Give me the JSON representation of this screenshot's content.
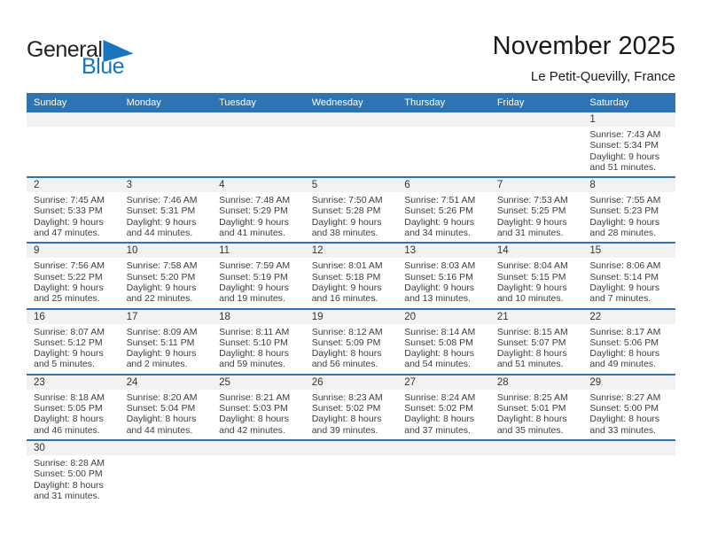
{
  "logo": {
    "part1": "General",
    "part2": "Blue"
  },
  "header": {
    "title": "November 2025",
    "subtitle": "Le Petit-Quevilly, France"
  },
  "weekdays": [
    "Sunday",
    "Monday",
    "Tuesday",
    "Wednesday",
    "Thursday",
    "Friday",
    "Saturday"
  ],
  "colors": {
    "header_bar": "#2e74b5",
    "week_divider": "#2e74b5",
    "day_number_strip": "#f2f2f2",
    "logo_blue": "#1b75bc",
    "text": "#3d3d3d"
  },
  "weeks": [
    [
      null,
      null,
      null,
      null,
      null,
      null,
      {
        "day": "1",
        "lines": [
          "Sunrise: 7:43 AM",
          "Sunset: 5:34 PM",
          "Daylight: 9 hours",
          "and 51 minutes."
        ]
      }
    ],
    [
      {
        "day": "2",
        "lines": [
          "Sunrise: 7:45 AM",
          "Sunset: 5:33 PM",
          "Daylight: 9 hours",
          "and 47 minutes."
        ]
      },
      {
        "day": "3",
        "lines": [
          "Sunrise: 7:46 AM",
          "Sunset: 5:31 PM",
          "Daylight: 9 hours",
          "and 44 minutes."
        ]
      },
      {
        "day": "4",
        "lines": [
          "Sunrise: 7:48 AM",
          "Sunset: 5:29 PM",
          "Daylight: 9 hours",
          "and 41 minutes."
        ]
      },
      {
        "day": "5",
        "lines": [
          "Sunrise: 7:50 AM",
          "Sunset: 5:28 PM",
          "Daylight: 9 hours",
          "and 38 minutes."
        ]
      },
      {
        "day": "6",
        "lines": [
          "Sunrise: 7:51 AM",
          "Sunset: 5:26 PM",
          "Daylight: 9 hours",
          "and 34 minutes."
        ]
      },
      {
        "day": "7",
        "lines": [
          "Sunrise: 7:53 AM",
          "Sunset: 5:25 PM",
          "Daylight: 9 hours",
          "and 31 minutes."
        ]
      },
      {
        "day": "8",
        "lines": [
          "Sunrise: 7:55 AM",
          "Sunset: 5:23 PM",
          "Daylight: 9 hours",
          "and 28 minutes."
        ]
      }
    ],
    [
      {
        "day": "9",
        "lines": [
          "Sunrise: 7:56 AM",
          "Sunset: 5:22 PM",
          "Daylight: 9 hours",
          "and 25 minutes."
        ]
      },
      {
        "day": "10",
        "lines": [
          "Sunrise: 7:58 AM",
          "Sunset: 5:20 PM",
          "Daylight: 9 hours",
          "and 22 minutes."
        ]
      },
      {
        "day": "11",
        "lines": [
          "Sunrise: 7:59 AM",
          "Sunset: 5:19 PM",
          "Daylight: 9 hours",
          "and 19 minutes."
        ]
      },
      {
        "day": "12",
        "lines": [
          "Sunrise: 8:01 AM",
          "Sunset: 5:18 PM",
          "Daylight: 9 hours",
          "and 16 minutes."
        ]
      },
      {
        "day": "13",
        "lines": [
          "Sunrise: 8:03 AM",
          "Sunset: 5:16 PM",
          "Daylight: 9 hours",
          "and 13 minutes."
        ]
      },
      {
        "day": "14",
        "lines": [
          "Sunrise: 8:04 AM",
          "Sunset: 5:15 PM",
          "Daylight: 9 hours",
          "and 10 minutes."
        ]
      },
      {
        "day": "15",
        "lines": [
          "Sunrise: 8:06 AM",
          "Sunset: 5:14 PM",
          "Daylight: 9 hours",
          "and 7 minutes."
        ]
      }
    ],
    [
      {
        "day": "16",
        "lines": [
          "Sunrise: 8:07 AM",
          "Sunset: 5:12 PM",
          "Daylight: 9 hours",
          "and 5 minutes."
        ]
      },
      {
        "day": "17",
        "lines": [
          "Sunrise: 8:09 AM",
          "Sunset: 5:11 PM",
          "Daylight: 9 hours",
          "and 2 minutes."
        ]
      },
      {
        "day": "18",
        "lines": [
          "Sunrise: 8:11 AM",
          "Sunset: 5:10 PM",
          "Daylight: 8 hours",
          "and 59 minutes."
        ]
      },
      {
        "day": "19",
        "lines": [
          "Sunrise: 8:12 AM",
          "Sunset: 5:09 PM",
          "Daylight: 8 hours",
          "and 56 minutes."
        ]
      },
      {
        "day": "20",
        "lines": [
          "Sunrise: 8:14 AM",
          "Sunset: 5:08 PM",
          "Daylight: 8 hours",
          "and 54 minutes."
        ]
      },
      {
        "day": "21",
        "lines": [
          "Sunrise: 8:15 AM",
          "Sunset: 5:07 PM",
          "Daylight: 8 hours",
          "and 51 minutes."
        ]
      },
      {
        "day": "22",
        "lines": [
          "Sunrise: 8:17 AM",
          "Sunset: 5:06 PM",
          "Daylight: 8 hours",
          "and 49 minutes."
        ]
      }
    ],
    [
      {
        "day": "23",
        "lines": [
          "Sunrise: 8:18 AM",
          "Sunset: 5:05 PM",
          "Daylight: 8 hours",
          "and 46 minutes."
        ]
      },
      {
        "day": "24",
        "lines": [
          "Sunrise: 8:20 AM",
          "Sunset: 5:04 PM",
          "Daylight: 8 hours",
          "and 44 minutes."
        ]
      },
      {
        "day": "25",
        "lines": [
          "Sunrise: 8:21 AM",
          "Sunset: 5:03 PM",
          "Daylight: 8 hours",
          "and 42 minutes."
        ]
      },
      {
        "day": "26",
        "lines": [
          "Sunrise: 8:23 AM",
          "Sunset: 5:02 PM",
          "Daylight: 8 hours",
          "and 39 minutes."
        ]
      },
      {
        "day": "27",
        "lines": [
          "Sunrise: 8:24 AM",
          "Sunset: 5:02 PM",
          "Daylight: 8 hours",
          "and 37 minutes."
        ]
      },
      {
        "day": "28",
        "lines": [
          "Sunrise: 8:25 AM",
          "Sunset: 5:01 PM",
          "Daylight: 8 hours",
          "and 35 minutes."
        ]
      },
      {
        "day": "29",
        "lines": [
          "Sunrise: 8:27 AM",
          "Sunset: 5:00 PM",
          "Daylight: 8 hours",
          "and 33 minutes."
        ]
      }
    ],
    [
      {
        "day": "30",
        "lines": [
          "Sunrise: 8:28 AM",
          "Sunset: 5:00 PM",
          "Daylight: 8 hours",
          "and 31 minutes."
        ]
      },
      null,
      null,
      null,
      null,
      null,
      null
    ]
  ]
}
